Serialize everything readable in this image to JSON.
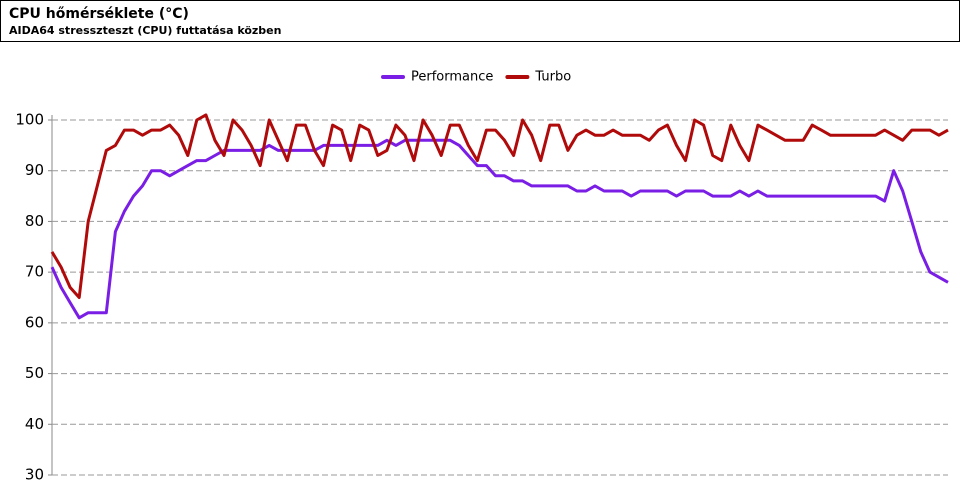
{
  "chart_data": {
    "type": "line",
    "title": "CPU hőmérséklete (°C)",
    "subtitle": "AIDA64 stresszteszt (CPU) futtatása közben",
    "ylim": [
      30,
      100
    ],
    "yticks": [
      30,
      40,
      50,
      60,
      70,
      80,
      90,
      100
    ],
    "grid": true,
    "legend": "top",
    "series": [
      {
        "name": "Performance",
        "color": "#7a1ee6",
        "values": [
          71,
          67,
          64,
          61,
          62,
          62,
          62,
          78,
          82,
          85,
          87,
          90,
          90,
          89,
          90,
          91,
          92,
          92,
          93,
          94,
          94,
          94,
          94,
          94,
          95,
          94,
          94,
          94,
          94,
          94,
          95,
          95,
          95,
          95,
          95,
          95,
          95,
          96,
          95,
          96,
          96,
          96,
          96,
          96,
          96,
          95,
          93,
          91,
          91,
          89,
          89,
          88,
          88,
          87,
          87,
          87,
          87,
          87,
          86,
          86,
          87,
          86,
          86,
          86,
          85,
          86,
          86,
          86,
          86,
          85,
          86,
          86,
          86,
          85,
          85,
          85,
          86,
          85,
          86,
          85,
          85,
          85,
          85,
          85,
          85,
          85,
          85,
          85,
          85,
          85,
          85,
          85,
          84,
          90,
          86,
          80,
          74,
          70,
          69,
          68
        ]
      },
      {
        "name": "Turbo",
        "color": "#b00a0a",
        "values": [
          74,
          71,
          67,
          65,
          80,
          87,
          94,
          95,
          98,
          98,
          97,
          98,
          98,
          99,
          97,
          93,
          100,
          101,
          96,
          93,
          100,
          98,
          95,
          91,
          100,
          96,
          92,
          99,
          99,
          94,
          91,
          99,
          98,
          92,
          99,
          98,
          93,
          94,
          99,
          97,
          92,
          100,
          97,
          93,
          99,
          99,
          95,
          92,
          98,
          98,
          96,
          93,
          100,
          97,
          92,
          99,
          99,
          94,
          97,
          98,
          97,
          97,
          98,
          97,
          97,
          97,
          96,
          98,
          99,
          95,
          92,
          100,
          99,
          93,
          92,
          99,
          95,
          92,
          99,
          98,
          97,
          96,
          96,
          96,
          99,
          98,
          97,
          97,
          97,
          97,
          97,
          97,
          98,
          97,
          96,
          98,
          98,
          98,
          97,
          98
        ]
      }
    ]
  }
}
